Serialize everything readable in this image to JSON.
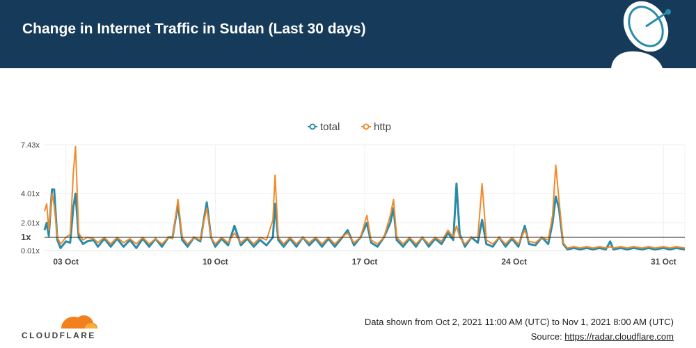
{
  "header": {
    "title": "Change in Internet Traffic in Sudan (Last 30 days)"
  },
  "footer": {
    "brand": "CLOUDFLARE",
    "date_range": "Data shown from Oct 2, 2021 11:00 AM (UTC) to Nov 1, 2021 8:00 AM (UTC)",
    "source_label": "Source: ",
    "source_link": "https://radar.cloudflare.com"
  },
  "colors": {
    "header_bg": "#163a59",
    "total": "#2a8ba8",
    "http": "#f0892a",
    "brand_orange": "#f38020"
  },
  "icons": {
    "header": "satellite-dish-icon",
    "logo": "cloudflare-cloud-icon"
  },
  "chart_data": {
    "type": "line",
    "legend_position": "top-center",
    "yticks": [
      "7.43x",
      "4.01x",
      "2.01x",
      "1x",
      "0.01x"
    ],
    "ytick_values": [
      7.43,
      4.01,
      2.01,
      1,
      0.01
    ],
    "y_baseline": 1,
    "ylim": [
      0.01,
      7.43
    ],
    "xlim": [
      0,
      30
    ],
    "xticks": [
      {
        "label": "03 Oct",
        "day": 1
      },
      {
        "label": "10 Oct",
        "day": 8
      },
      {
        "label": "17 Oct",
        "day": 15
      },
      {
        "label": "24 Oct",
        "day": 22
      },
      {
        "label": "31 Oct",
        "day": 29
      }
    ],
    "series": [
      {
        "name": "total",
        "points": [
          [
            0,
            1.5
          ],
          [
            0.1,
            2.0
          ],
          [
            0.2,
            1.1
          ],
          [
            0.35,
            4.3
          ],
          [
            0.45,
            4.3
          ],
          [
            0.6,
            0.8
          ],
          [
            0.75,
            0.2
          ],
          [
            1.0,
            0.7
          ],
          [
            1.2,
            0.6
          ],
          [
            1.35,
            3.1
          ],
          [
            1.45,
            4.0
          ],
          [
            1.6,
            1.0
          ],
          [
            1.8,
            0.5
          ],
          [
            2.0,
            0.7
          ],
          [
            2.3,
            0.8
          ],
          [
            2.5,
            0.3
          ],
          [
            2.8,
            0.9
          ],
          [
            3.1,
            0.3
          ],
          [
            3.4,
            0.9
          ],
          [
            3.7,
            0.3
          ],
          [
            4.0,
            0.8
          ],
          [
            4.3,
            0.2
          ],
          [
            4.6,
            0.9
          ],
          [
            4.9,
            0.3
          ],
          [
            5.2,
            0.9
          ],
          [
            5.5,
            0.3
          ],
          [
            5.8,
            1.0
          ],
          [
            6.0,
            1.0
          ],
          [
            6.25,
            3.3
          ],
          [
            6.45,
            0.8
          ],
          [
            6.7,
            0.3
          ],
          [
            7.0,
            1.0
          ],
          [
            7.3,
            0.7
          ],
          [
            7.45,
            2.1
          ],
          [
            7.6,
            3.4
          ],
          [
            7.8,
            1.0
          ],
          [
            8.0,
            0.3
          ],
          [
            8.3,
            0.9
          ],
          [
            8.6,
            0.4
          ],
          [
            8.9,
            1.8
          ],
          [
            9.2,
            0.4
          ],
          [
            9.5,
            0.9
          ],
          [
            9.8,
            0.3
          ],
          [
            10.1,
            0.8
          ],
          [
            10.4,
            0.4
          ],
          [
            10.7,
            1.0
          ],
          [
            10.8,
            3.3
          ],
          [
            10.95,
            0.8
          ],
          [
            11.2,
            0.3
          ],
          [
            11.5,
            0.9
          ],
          [
            11.8,
            0.3
          ],
          [
            12.1,
            1.0
          ],
          [
            12.4,
            0.4
          ],
          [
            12.7,
            0.9
          ],
          [
            13.0,
            0.3
          ],
          [
            13.3,
            0.9
          ],
          [
            13.6,
            0.3
          ],
          [
            13.9,
            0.9
          ],
          [
            14.2,
            1.5
          ],
          [
            14.5,
            0.4
          ],
          [
            14.8,
            1.0
          ],
          [
            15.1,
            2.0
          ],
          [
            15.3,
            0.6
          ],
          [
            15.6,
            0.3
          ],
          [
            15.9,
            1.0
          ],
          [
            16.2,
            2.0
          ],
          [
            16.35,
            3.0
          ],
          [
            16.5,
            0.8
          ],
          [
            16.8,
            0.3
          ],
          [
            17.1,
            0.9
          ],
          [
            17.4,
            0.3
          ],
          [
            17.7,
            1.0
          ],
          [
            18.0,
            0.3
          ],
          [
            18.3,
            0.9
          ],
          [
            18.6,
            0.5
          ],
          [
            18.9,
            1.3
          ],
          [
            19.15,
            0.8
          ],
          [
            19.3,
            4.7
          ],
          [
            19.45,
            1.2
          ],
          [
            19.7,
            0.3
          ],
          [
            20.0,
            1.0
          ],
          [
            20.3,
            0.6
          ],
          [
            20.5,
            2.2
          ],
          [
            20.7,
            0.5
          ],
          [
            21.0,
            0.3
          ],
          [
            21.3,
            1.0
          ],
          [
            21.6,
            0.3
          ],
          [
            21.9,
            0.9
          ],
          [
            22.2,
            0.3
          ],
          [
            22.5,
            1.8
          ],
          [
            22.7,
            0.5
          ],
          [
            23.0,
            0.4
          ],
          [
            23.3,
            1.0
          ],
          [
            23.6,
            0.5
          ],
          [
            23.8,
            2.0
          ],
          [
            23.95,
            3.8
          ],
          [
            24.1,
            3.0
          ],
          [
            24.3,
            0.5
          ],
          [
            24.5,
            0.1
          ],
          [
            24.8,
            0.2
          ],
          [
            25.1,
            0.1
          ],
          [
            25.4,
            0.2
          ],
          [
            25.7,
            0.1
          ],
          [
            26.0,
            0.2
          ],
          [
            26.3,
            0.1
          ],
          [
            26.5,
            0.7
          ],
          [
            26.65,
            0.1
          ],
          [
            27.0,
            0.2
          ],
          [
            27.3,
            0.1
          ],
          [
            27.6,
            0.2
          ],
          [
            28.0,
            0.1
          ],
          [
            28.3,
            0.2
          ],
          [
            28.6,
            0.1
          ],
          [
            29.0,
            0.2
          ],
          [
            29.3,
            0.1
          ],
          [
            29.6,
            0.2
          ],
          [
            30.0,
            0.1
          ]
        ]
      },
      {
        "name": "http",
        "points": [
          [
            0,
            2.8
          ],
          [
            0.1,
            3.3
          ],
          [
            0.2,
            1.5
          ],
          [
            0.35,
            4.0
          ],
          [
            0.45,
            3.2
          ],
          [
            0.6,
            1.0
          ],
          [
            0.75,
            0.5
          ],
          [
            1.0,
            1.0
          ],
          [
            1.2,
            1.2
          ],
          [
            1.35,
            5.5
          ],
          [
            1.45,
            7.3
          ],
          [
            1.6,
            1.3
          ],
          [
            1.8,
            0.8
          ],
          [
            2.0,
            1.0
          ],
          [
            2.3,
            0.9
          ],
          [
            2.5,
            0.6
          ],
          [
            2.8,
            1.0
          ],
          [
            3.1,
            0.5
          ],
          [
            3.4,
            1.0
          ],
          [
            3.7,
            0.6
          ],
          [
            4.0,
            0.9
          ],
          [
            4.3,
            0.5
          ],
          [
            4.6,
            1.0
          ],
          [
            4.9,
            0.5
          ],
          [
            5.2,
            0.9
          ],
          [
            5.5,
            0.5
          ],
          [
            5.8,
            1.0
          ],
          [
            6.0,
            0.9
          ],
          [
            6.25,
            3.6
          ],
          [
            6.45,
            1.0
          ],
          [
            6.7,
            0.5
          ],
          [
            7.0,
            1.0
          ],
          [
            7.3,
            0.8
          ],
          [
            7.45,
            2.0
          ],
          [
            7.6,
            3.0
          ],
          [
            7.8,
            1.0
          ],
          [
            8.0,
            0.5
          ],
          [
            8.3,
            1.0
          ],
          [
            8.6,
            0.6
          ],
          [
            8.9,
            1.3
          ],
          [
            9.2,
            0.6
          ],
          [
            9.5,
            1.0
          ],
          [
            9.8,
            0.5
          ],
          [
            10.1,
            1.0
          ],
          [
            10.4,
            0.8
          ],
          [
            10.7,
            2.2
          ],
          [
            10.8,
            5.3
          ],
          [
            10.95,
            1.0
          ],
          [
            11.2,
            0.5
          ],
          [
            11.5,
            1.0
          ],
          [
            11.8,
            0.5
          ],
          [
            12.1,
            1.0
          ],
          [
            12.4,
            0.6
          ],
          [
            12.7,
            1.0
          ],
          [
            13.0,
            0.5
          ],
          [
            13.3,
            1.0
          ],
          [
            13.6,
            0.5
          ],
          [
            13.9,
            1.0
          ],
          [
            14.2,
            1.3
          ],
          [
            14.5,
            0.6
          ],
          [
            14.8,
            1.0
          ],
          [
            15.1,
            2.5
          ],
          [
            15.3,
            0.8
          ],
          [
            15.6,
            0.5
          ],
          [
            15.9,
            1.0
          ],
          [
            16.2,
            2.5
          ],
          [
            16.35,
            3.6
          ],
          [
            16.5,
            1.0
          ],
          [
            16.8,
            0.5
          ],
          [
            17.1,
            1.0
          ],
          [
            17.4,
            0.5
          ],
          [
            17.7,
            1.0
          ],
          [
            18.0,
            0.5
          ],
          [
            18.3,
            1.0
          ],
          [
            18.6,
            0.7
          ],
          [
            18.9,
            1.5
          ],
          [
            19.15,
            1.0
          ],
          [
            19.3,
            1.8
          ],
          [
            19.45,
            1.0
          ],
          [
            19.7,
            0.5
          ],
          [
            20.0,
            1.0
          ],
          [
            20.3,
            1.0
          ],
          [
            20.5,
            4.7
          ],
          [
            20.7,
            0.8
          ],
          [
            21.0,
            0.5
          ],
          [
            21.3,
            1.0
          ],
          [
            21.6,
            0.5
          ],
          [
            21.9,
            1.0
          ],
          [
            22.2,
            0.5
          ],
          [
            22.5,
            1.5
          ],
          [
            22.7,
            0.7
          ],
          [
            23.0,
            0.6
          ],
          [
            23.3,
            1.0
          ],
          [
            23.6,
            0.8
          ],
          [
            23.8,
            2.5
          ],
          [
            23.95,
            6.0
          ],
          [
            24.1,
            3.6
          ],
          [
            24.3,
            0.6
          ],
          [
            24.5,
            0.2
          ],
          [
            24.8,
            0.3
          ],
          [
            25.1,
            0.2
          ],
          [
            25.4,
            0.3
          ],
          [
            25.7,
            0.2
          ],
          [
            26.0,
            0.3
          ],
          [
            26.3,
            0.2
          ],
          [
            26.5,
            0.3
          ],
          [
            26.65,
            0.2
          ],
          [
            27.0,
            0.3
          ],
          [
            27.3,
            0.2
          ],
          [
            27.6,
            0.3
          ],
          [
            28.0,
            0.2
          ],
          [
            28.3,
            0.3
          ],
          [
            28.6,
            0.2
          ],
          [
            29.0,
            0.3
          ],
          [
            29.3,
            0.2
          ],
          [
            29.6,
            0.3
          ],
          [
            30.0,
            0.2
          ]
        ]
      }
    ]
  }
}
